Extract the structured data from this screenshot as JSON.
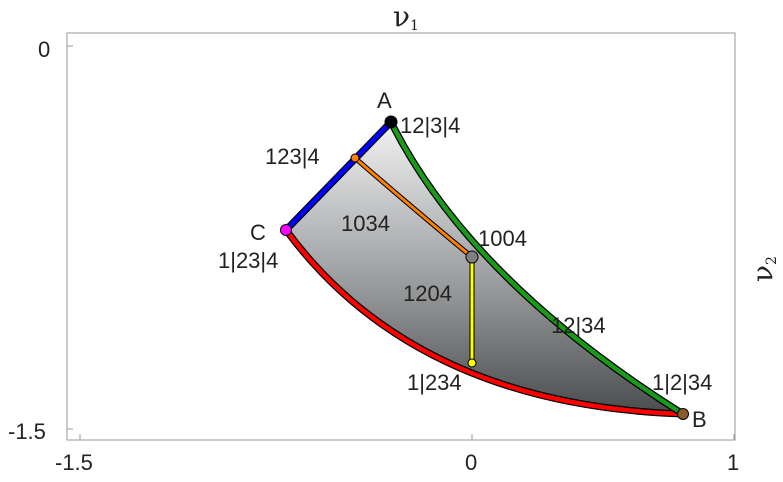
{
  "axes": {
    "top_title": "ν",
    "top_title_sub": "1",
    "right_title": "ν",
    "right_title_sub": "2",
    "x_ticks": [
      "-1.5",
      "0",
      "1"
    ],
    "y_ticks": [
      "0",
      "-1.5"
    ]
  },
  "points": {
    "A": {
      "label": "A",
      "name": "12|3|4",
      "color": "#000000"
    },
    "B": {
      "label": "B",
      "name": "1|2|34",
      "color": "#8B5A2B"
    },
    "C": {
      "label": "C",
      "name": "1|23|4",
      "color": "#ff00ff"
    },
    "mid": {
      "name": "1004",
      "color": "#808080"
    },
    "orange_end": {
      "name": "123|4",
      "color": "#ff8800"
    },
    "yellow_end": {
      "name": "1|234",
      "color": "#ffff00"
    }
  },
  "regions": {
    "upper": "1034",
    "lower": "1204"
  },
  "edges": {
    "green": {
      "name": "12|34",
      "color": "#1a9a1a"
    },
    "blue": {
      "color": "#0000ff"
    },
    "red": {
      "color": "#ff0000"
    },
    "orange": {
      "color": "#ff7f00"
    },
    "yellow": {
      "color": "#ffff00"
    }
  }
}
